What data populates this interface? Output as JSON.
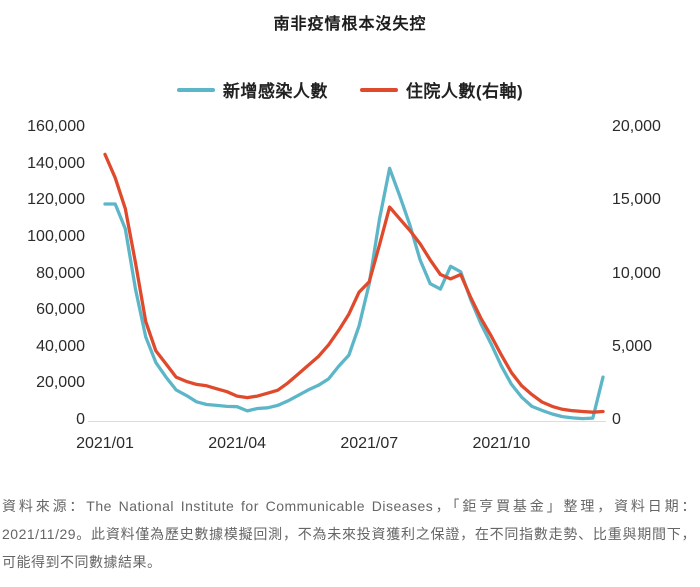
{
  "title": "南非疫情根本沒失控",
  "legend": [
    {
      "label": "新增感染人數",
      "color": "#5cb6c8"
    },
    {
      "label": "住院人數(右軸)",
      "color": "#e04a2c"
    }
  ],
  "chart_data": {
    "type": "line",
    "title": "南非疫情根本沒失控",
    "x_tick_labels": [
      "2021/01",
      "2021/04",
      "2021/07",
      "2021/10"
    ],
    "x_tick_indices": [
      0,
      13,
      26,
      39
    ],
    "x_description": "weekly points from 2021/01 to 2021/11/29",
    "grid": "baseline only",
    "legend_position": "top-center",
    "left_axis": {
      "min": 0,
      "max": 160000,
      "ticks": [
        "0",
        "20,000",
        "40,000",
        "60,000",
        "80,000",
        "100,000",
        "120,000",
        "140,000",
        "160,000"
      ]
    },
    "right_axis": {
      "min": 0,
      "max": 20000,
      "ticks": [
        "0",
        "5,000",
        "10,000",
        "15,000",
        "20,000"
      ]
    },
    "series": [
      {
        "name": "新增感染人數",
        "axis": "left",
        "color": "#5cb6c8",
        "values": [
          118500,
          118500,
          105000,
          72000,
          46000,
          32000,
          24000,
          17000,
          14000,
          10500,
          9000,
          8500,
          8000,
          7800,
          5500,
          6800,
          7200,
          8500,
          11000,
          14000,
          17000,
          19500,
          23000,
          30000,
          36000,
          52000,
          75000,
          110000,
          138000,
          123000,
          107000,
          88000,
          75000,
          72000,
          84500,
          81500,
          66000,
          53000,
          42000,
          30000,
          20000,
          13000,
          8000,
          5800,
          3800,
          2400,
          1700,
          1300,
          1600,
          24000
        ]
      },
      {
        "name": "住院人數(右軸)",
        "axis": "right",
        "color": "#e04a2c",
        "values": [
          18200,
          16600,
          14500,
          10800,
          6800,
          4800,
          3900,
          3000,
          2700,
          2500,
          2400,
          2200,
          2000,
          1700,
          1600,
          1700,
          1900,
          2100,
          2600,
          3200,
          3800,
          4400,
          5200,
          6200,
          7300,
          8800,
          9500,
          12000,
          14600,
          13800,
          13000,
          12100,
          11000,
          10000,
          9700,
          10000,
          8400,
          7000,
          5800,
          4500,
          3300,
          2400,
          1800,
          1300,
          1000,
          800,
          700,
          650,
          600,
          650
        ]
      }
    ]
  },
  "footer": {
    "text": "資料來源：The National Institute for Communicable Diseases，「鉅亨買基金」整理，資料日期：2021/11/29。此資料僅為歷史數據模擬回測，不為未來投資獲利之保證，在不同指數走勢、比重與期間下，可能得到不同數據結果。"
  }
}
